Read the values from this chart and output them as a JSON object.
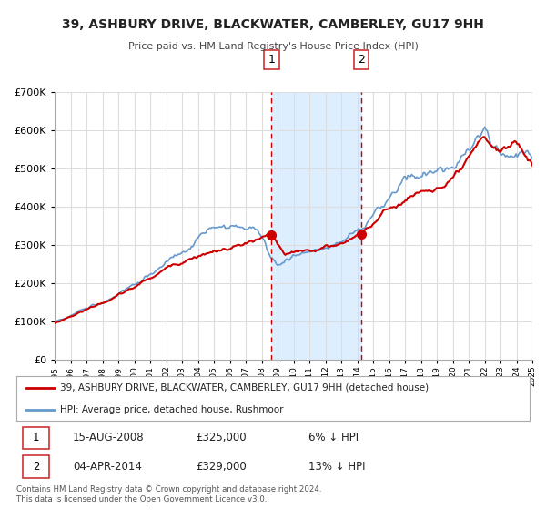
{
  "title": "39, ASHBURY DRIVE, BLACKWATER, CAMBERLEY, GU17 9HH",
  "subtitle": "Price paid vs. HM Land Registry's House Price Index (HPI)",
  "legend_line1": "39, ASHBURY DRIVE, BLACKWATER, CAMBERLEY, GU17 9HH (detached house)",
  "legend_line2": "HPI: Average price, detached house, Rushmoor",
  "footnote1": "Contains HM Land Registry data © Crown copyright and database right 2024.",
  "footnote2": "This data is licensed under the Open Government Licence v3.0.",
  "annotation1": {
    "label": "1",
    "date_str": "15-AUG-2008",
    "price": "£325,000",
    "pct": "6% ↓ HPI",
    "x_year": 2008.625
  },
  "annotation2": {
    "label": "2",
    "date_str": "04-APR-2014",
    "price": "£329,000",
    "pct": "13% ↓ HPI",
    "x_year": 2014.25
  },
  "red_line_color": "#cc0000",
  "blue_line_color": "#6699cc",
  "shade_color": "#ddeeff",
  "vline_color": "#cc0000",
  "grid_color": "#dddddd",
  "bg_color": "#ffffff",
  "ylim": [
    0,
    700000
  ],
  "xlim_start": 1995,
  "xlim_end": 2025
}
